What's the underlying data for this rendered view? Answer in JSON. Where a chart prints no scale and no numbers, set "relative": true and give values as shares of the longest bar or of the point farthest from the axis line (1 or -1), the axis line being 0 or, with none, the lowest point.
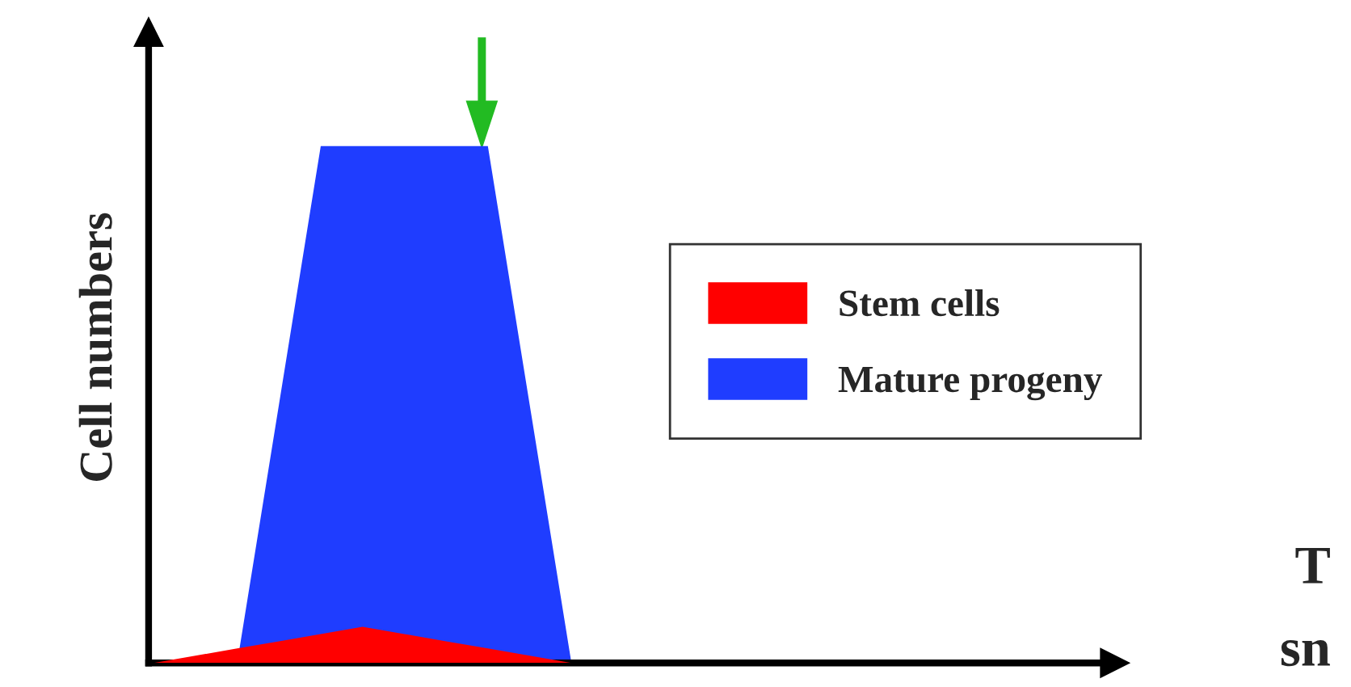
{
  "chart_data": {
    "type": "area",
    "relative": true,
    "ylabel": "Cell numbers",
    "legend": "right",
    "categories": [
      null,
      null,
      null,
      null,
      null,
      null,
      null,
      null,
      null,
      null,
      null
    ],
    "series": [
      {
        "name": "Stem cells",
        "color": "#ff0000",
        "values": [
          0,
          0.014,
          0.028,
          0.042,
          0.056,
          0.07,
          0.056,
          0.042,
          0.028,
          0.014,
          0
        ]
      },
      {
        "name": "Mature progeny",
        "color": "#1f3dff",
        "values": [
          null,
          null,
          0,
          0.5,
          1,
          1,
          1,
          1,
          1,
          0.5,
          0
        ]
      }
    ],
    "annotations": [
      "T",
      "sn"
    ]
  }
}
